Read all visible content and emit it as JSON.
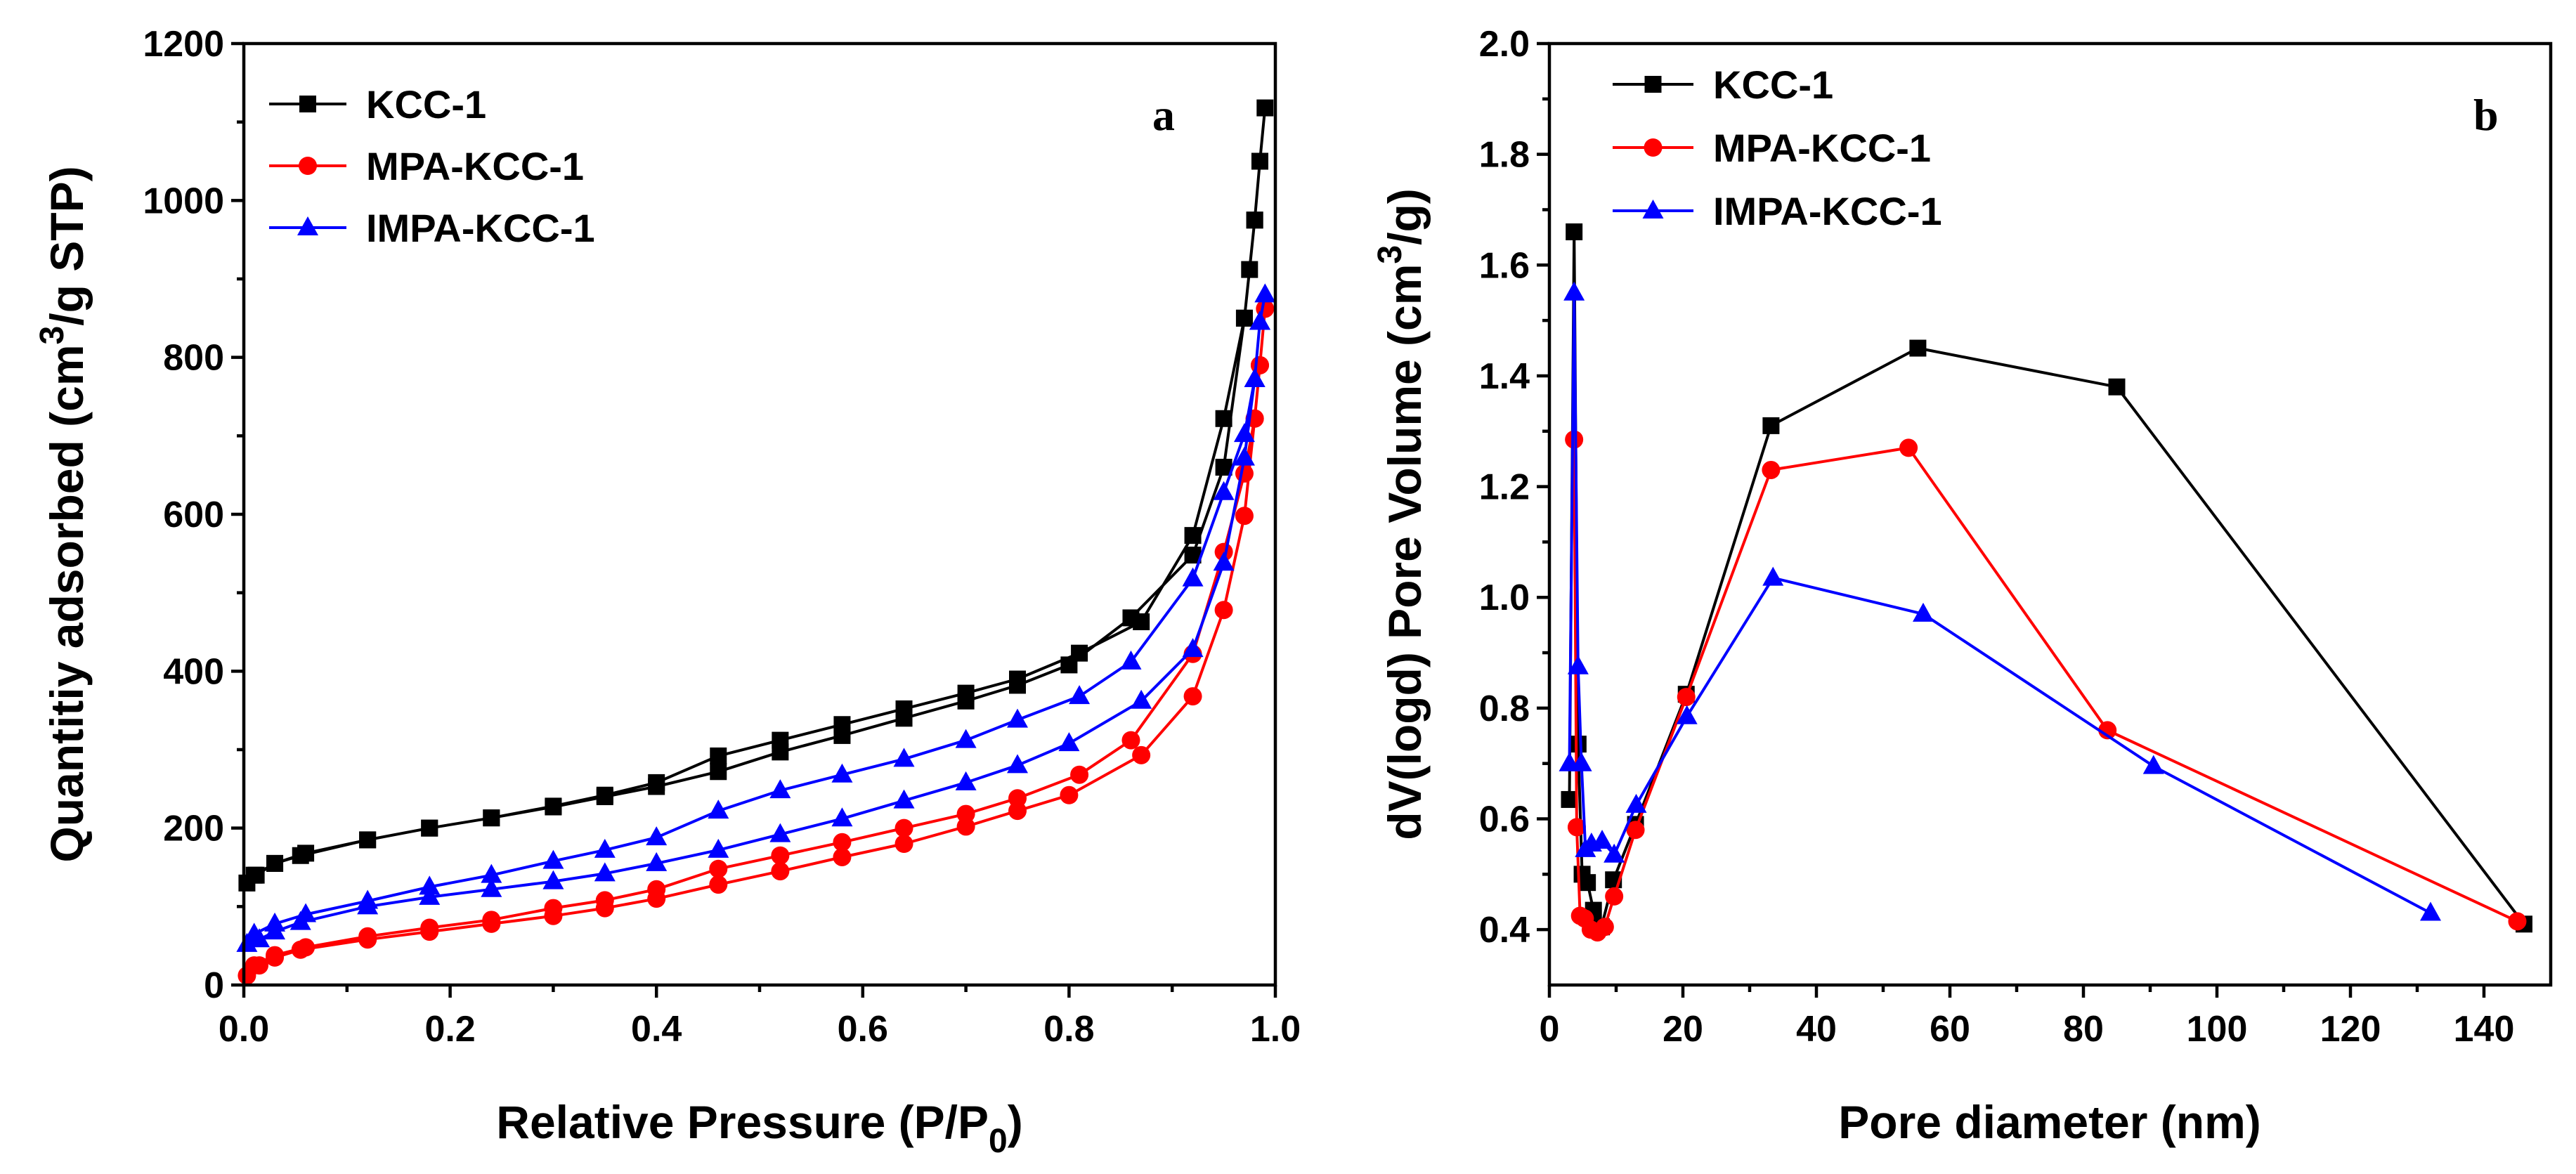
{
  "chart_data": [
    {
      "type": "line",
      "panel": "a",
      "title": "",
      "xlabel": "Relative Pressure (P/P",
      "xlabel_sub": "0",
      "xlabel_end": ")",
      "ylabel": "Quantitiy adsorbed (cm",
      "ylabel_sup": "3",
      "ylabel_end": "/g STP)",
      "xlim": [
        0.0,
        1.0
      ],
      "ylim": [
        0,
        1200
      ],
      "xticks": [
        0.0,
        0.2,
        0.4,
        0.6,
        0.8,
        1.0
      ],
      "xtick_labels": [
        "0.0",
        "0.2",
        "0.4",
        "0.6",
        "0.8",
        "1.0"
      ],
      "yticks": [
        0,
        200,
        400,
        600,
        800,
        1000,
        1200
      ],
      "ytick_labels": [
        "0",
        "200",
        "400",
        "600",
        "800",
        "1000",
        "1200"
      ],
      "legend_position": "top-left",
      "series": [
        {
          "name": "KCC-1",
          "color": "#000000",
          "marker": "square",
          "x": [
            0.003,
            0.012,
            0.03,
            0.055,
            0.12,
            0.18,
            0.24,
            0.3,
            0.35,
            0.4,
            0.46,
            0.52,
            0.58,
            0.64,
            0.7,
            0.75,
            0.8,
            0.86,
            0.92,
            0.95,
            0.97,
            0.98,
            0.985,
            0.99,
            0.985,
            0.98,
            0.975,
            0.97,
            0.95,
            0.92,
            0.87,
            0.81,
            0.75,
            0.7,
            0.64,
            0.58,
            0.52,
            0.46,
            0.4,
            0.35,
            0.3,
            0.24,
            0.18,
            0.12,
            0.06,
            0.03,
            0.01
          ],
          "y": [
            130,
            140,
            155,
            165,
            185,
            200,
            213,
            227,
            240,
            253,
            272,
            297,
            318,
            340,
            362,
            382,
            408,
            468,
            548,
            660,
            850,
            975,
            1050,
            1118,
            1050,
            975,
            912,
            850,
            722,
            573,
            463,
            423,
            390,
            372,
            352,
            332,
            312,
            292,
            258,
            242,
            228,
            213,
            200,
            185,
            168,
            155,
            140
          ]
        },
        {
          "name": "MPA-KCC-1",
          "color": "#ff0000",
          "marker": "circle",
          "x": [
            0.003,
            0.015,
            0.03,
            0.055,
            0.12,
            0.18,
            0.24,
            0.3,
            0.35,
            0.4,
            0.46,
            0.52,
            0.58,
            0.64,
            0.7,
            0.75,
            0.8,
            0.87,
            0.92,
            0.95,
            0.97,
            0.98,
            0.985,
            0.99,
            0.985,
            0.98,
            0.97,
            0.95,
            0.92,
            0.86,
            0.81,
            0.75,
            0.7,
            0.64,
            0.58,
            0.52,
            0.46,
            0.4,
            0.35,
            0.3,
            0.24,
            0.18,
            0.12,
            0.06,
            0.03,
            0.01
          ],
          "y": [
            12,
            25,
            35,
            45,
            58,
            68,
            78,
            88,
            98,
            110,
            128,
            145,
            163,
            180,
            202,
            222,
            242,
            293,
            368,
            478,
            598,
            722,
            790,
            862,
            790,
            722,
            652,
            552,
            422,
            312,
            268,
            238,
            218,
            200,
            182,
            165,
            148,
            122,
            108,
            98,
            83,
            73,
            62,
            48,
            38,
            25
          ]
        },
        {
          "name": "IMPA-KCC-1",
          "color": "#0000ff",
          "marker": "triangle",
          "x": [
            0.003,
            0.015,
            0.03,
            0.055,
            0.12,
            0.18,
            0.24,
            0.3,
            0.35,
            0.4,
            0.46,
            0.52,
            0.58,
            0.64,
            0.7,
            0.75,
            0.8,
            0.87,
            0.92,
            0.95,
            0.97,
            0.98,
            0.985,
            0.99,
            0.985,
            0.98,
            0.97,
            0.95,
            0.92,
            0.86,
            0.81,
            0.75,
            0.7,
            0.64,
            0.58,
            0.52,
            0.46,
            0.4,
            0.35,
            0.3,
            0.24,
            0.18,
            0.12,
            0.06,
            0.03,
            0.01
          ],
          "y": [
            52,
            58,
            68,
            80,
            100,
            112,
            122,
            132,
            142,
            155,
            172,
            192,
            212,
            235,
            258,
            280,
            308,
            362,
            428,
            538,
            672,
            772,
            845,
            880,
            845,
            772,
            702,
            628,
            518,
            412,
            368,
            338,
            312,
            288,
            268,
            248,
            222,
            188,
            172,
            158,
            140,
            125,
            107,
            90,
            78,
            65
          ]
        }
      ]
    },
    {
      "type": "line",
      "panel": "b",
      "title": "",
      "xlabel": "Pore diameter (nm)",
      "ylabel": "dV(logd)  Pore Volume (cm",
      "ylabel_sup": "3",
      "ylabel_end": "/g)",
      "xlim": [
        0,
        150
      ],
      "ylim": [
        0.3,
        2.0
      ],
      "xticks": [
        0,
        20,
        40,
        60,
        80,
        100,
        120,
        140
      ],
      "xtick_labels": [
        "0",
        "20",
        "40",
        "60",
        "80",
        "100",
        "120",
        "140"
      ],
      "yticks": [
        0.4,
        0.6,
        0.8,
        1.0,
        1.2,
        1.4,
        1.6,
        1.8,
        2.0
      ],
      "ytick_labels": [
        "0.4",
        "0.6",
        "0.8",
        "1.0",
        "1.2",
        "1.4",
        "1.6",
        "1.8",
        "2.0"
      ],
      "legend_position": "top-left",
      "series": [
        {
          "name": "KCC-1",
          "color": "#000000",
          "marker": "square",
          "x": [
            3.0,
            3.7,
            4.3,
            4.9,
            5.7,
            6.6,
            7.8,
            9.6,
            12.9,
            20.5,
            33.2,
            55.2,
            85.0,
            146.0
          ],
          "y": [
            0.635,
            1.66,
            0.735,
            0.5,
            0.485,
            0.435,
            0.405,
            0.49,
            0.59,
            0.825,
            1.31,
            1.45,
            1.38,
            0.41
          ]
        },
        {
          "name": "MPA-KCC-1",
          "color": "#ff0000",
          "marker": "circle",
          "x": [
            3.7,
            4.1,
            4.6,
            5.3,
            6.2,
            7.2,
            8.3,
            9.7,
            12.9,
            20.5,
            33.2,
            53.8,
            83.6,
            145.0
          ],
          "y": [
            1.285,
            0.585,
            0.425,
            0.42,
            0.4,
            0.395,
            0.405,
            0.46,
            0.58,
            0.82,
            1.23,
            1.27,
            0.76,
            0.415
          ]
        },
        {
          "name": "IMPA-KCC-1",
          "color": "#0000ff",
          "marker": "triangle",
          "x": [
            3.0,
            3.7,
            4.3,
            4.8,
            5.4,
            6.3,
            7.9,
            9.7,
            13.0,
            20.6,
            33.5,
            56.0,
            90.5,
            132.0
          ],
          "y": [
            0.7,
            1.55,
            0.875,
            0.7,
            0.545,
            0.555,
            0.56,
            0.535,
            0.625,
            0.785,
            1.035,
            0.97,
            0.695,
            0.43
          ]
        }
      ]
    }
  ]
}
